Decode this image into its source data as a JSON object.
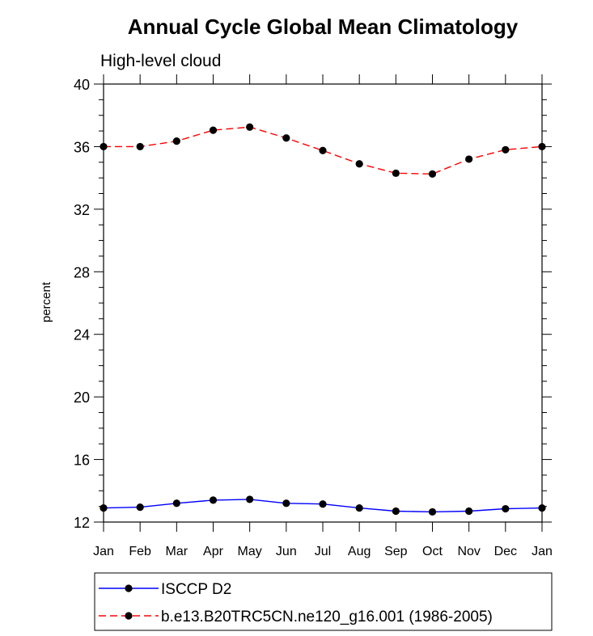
{
  "chart_data": {
    "type": "line",
    "title": "Annual Cycle Global Mean Climatology",
    "subtitle": "High-level cloud",
    "xlabel": "",
    "ylabel": "percent",
    "categories": [
      "Jan",
      "Feb",
      "Mar",
      "Apr",
      "May",
      "Jun",
      "Jul",
      "Aug",
      "Sep",
      "Oct",
      "Nov",
      "Dec",
      "Jan"
    ],
    "ylim": [
      12,
      40
    ],
    "yticks": [
      12,
      16,
      20,
      24,
      28,
      32,
      36,
      40
    ],
    "yminor_step": 1,
    "grid": false,
    "legend_position": "bottom",
    "series": [
      {
        "name": "ISCCP D2",
        "color": "#0000ff",
        "dash": "solid",
        "marker": "filled-circle",
        "values": [
          12.9,
          12.95,
          13.2,
          13.4,
          13.45,
          13.2,
          13.15,
          12.9,
          12.7,
          12.65,
          12.7,
          12.85,
          12.9
        ]
      },
      {
        "name": "b.e13.B20TRC5CN.ne120_g16.001 (1986-2005)",
        "color": "#ff0000",
        "dash": "dashed",
        "marker": "filled-circle",
        "values": [
          36.0,
          36.0,
          36.35,
          37.05,
          37.25,
          36.55,
          35.75,
          34.9,
          34.3,
          34.25,
          35.2,
          35.8,
          36.0
        ]
      }
    ]
  }
}
